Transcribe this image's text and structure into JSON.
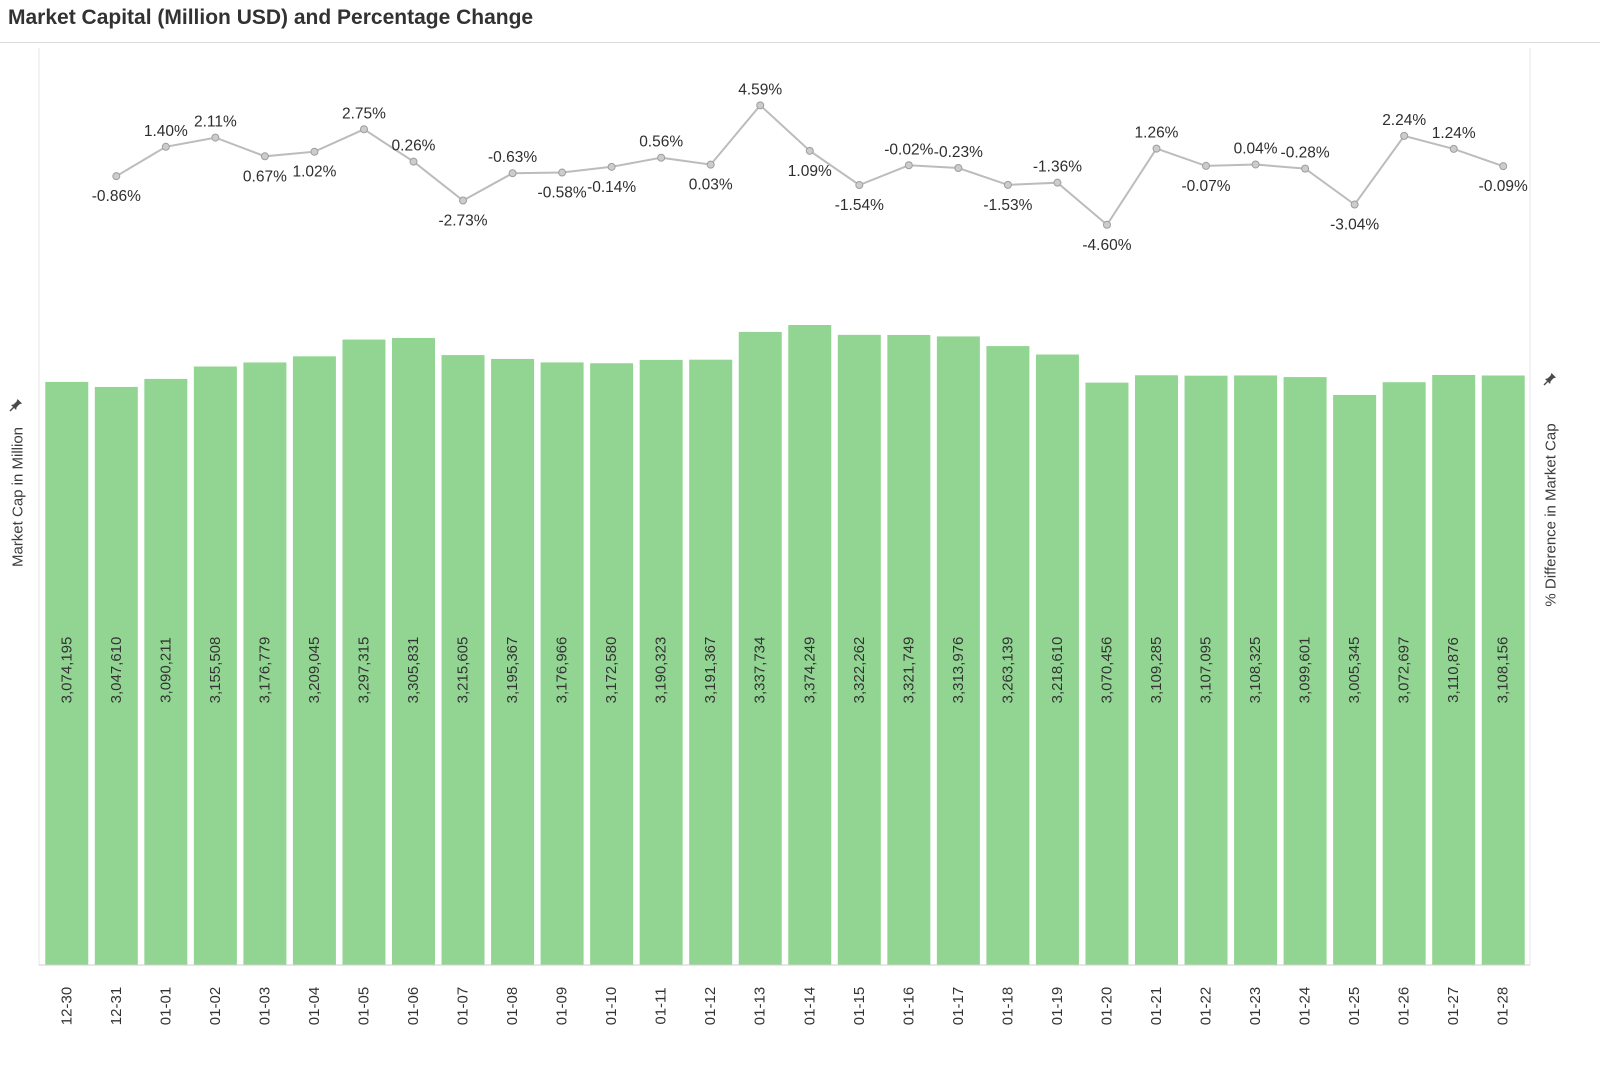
{
  "title": "Market Capital (Million USD) and Percentage Change",
  "axes": {
    "left_title": "Market Cap in Million",
    "right_title": "% Difference in Market Cap"
  },
  "colors": {
    "bar": "#92d593",
    "bar_label": "#333333",
    "line": "#bcbcbc",
    "marker_fill": "#cccccc",
    "marker_stroke": "#9e9e9e",
    "pct_label": "#2e2e2e",
    "axis_label": "#333333",
    "pane_border": "#e4e4e4",
    "baseline": "#cfcfcf",
    "pin": "#4a4a4a"
  },
  "chart_data": {
    "type": "bar",
    "combo": "bar+line",
    "title": "Market Capital (Million USD) and Percentage Change",
    "xlabel": "",
    "ylabel_left": "Market Cap in Million",
    "ylabel_right": "% Difference in Market Cap",
    "grid": false,
    "legend": "none",
    "categories": [
      "12-30",
      "12-31",
      "01-01",
      "01-02",
      "01-03",
      "01-04",
      "01-05",
      "01-06",
      "01-07",
      "01-08",
      "01-09",
      "01-10",
      "01-11",
      "01-12",
      "01-13",
      "01-14",
      "01-15",
      "01-16",
      "01-17",
      "01-18",
      "01-19",
      "01-20",
      "01-21",
      "01-22",
      "01-23",
      "01-24",
      "01-25",
      "01-26",
      "01-27",
      "01-28"
    ],
    "series": [
      {
        "name": "Market Cap in Million",
        "type": "bar",
        "axis": "left",
        "ylim": [
          0,
          3374249
        ],
        "values": [
          3074195,
          3047610,
          3090211,
          3155508,
          3176779,
          3209045,
          3297315,
          3305831,
          3215605,
          3195367,
          3176966,
          3172580,
          3190323,
          3191367,
          3337734,
          3374249,
          3322262,
          3321749,
          3313976,
          3263139,
          3218610,
          3070456,
          3109285,
          3107095,
          3108325,
          3099601,
          3005345,
          3072697,
          3110876,
          3108156
        ],
        "labels": [
          "3,074,195",
          "3,047,610",
          "3,090,211",
          "3,155,508",
          "3,176,779",
          "3,209,045",
          "3,297,315",
          "3,305,831",
          "3,215,605",
          "3,195,367",
          "3,176,966",
          "3,172,580",
          "3,190,323",
          "3,191,367",
          "3,337,734",
          "3,374,249",
          "3,322,262",
          "3,321,749",
          "3,313,976",
          "3,263,139",
          "3,218,610",
          "3,070,456",
          "3,109,285",
          "3,107,095",
          "3,108,325",
          "3,099,601",
          "3,005,345",
          "3,072,697",
          "3,110,876",
          "3,108,156"
        ]
      },
      {
        "name": "% Difference in Market Cap",
        "type": "line",
        "axis": "right",
        "x_start_index": 1,
        "ylim": [
          -4.6,
          4.59
        ],
        "values": [
          -0.86,
          1.4,
          2.11,
          0.67,
          1.02,
          2.75,
          0.26,
          -2.73,
          -0.63,
          -0.58,
          -0.14,
          0.56,
          0.03,
          4.59,
          1.09,
          -1.54,
          -0.02,
          -0.23,
          -1.53,
          -1.36,
          -4.6,
          1.26,
          -0.07,
          0.04,
          -0.28,
          -3.04,
          2.24,
          1.24,
          -0.09
        ],
        "labels": [
          "-0.86%",
          "1.40%",
          "2.11%",
          "0.67%",
          "1.02%",
          "2.75%",
          "0.26%",
          "-2.73%",
          "-0.63%",
          "-0.58%",
          "-0.14%",
          "0.56%",
          "0.03%",
          "4.59%",
          "1.09%",
          "-1.54%",
          "-0.02%",
          "-0.23%",
          "-1.53%",
          "-1.36%",
          "-4.60%",
          "1.26%",
          "-0.07%",
          "0.04%",
          "-0.28%",
          "-3.04%",
          "2.24%",
          "1.24%",
          "-0.09%"
        ],
        "label_pos": [
          "below",
          "above",
          "above",
          "below",
          "below",
          "above",
          "above",
          "below",
          "above",
          "below",
          "below",
          "above",
          "below",
          "above",
          "below",
          "below",
          "above",
          "above",
          "below",
          "above",
          "below",
          "above",
          "below",
          "above",
          "above",
          "below",
          "above",
          "above",
          "below"
        ]
      }
    ]
  }
}
